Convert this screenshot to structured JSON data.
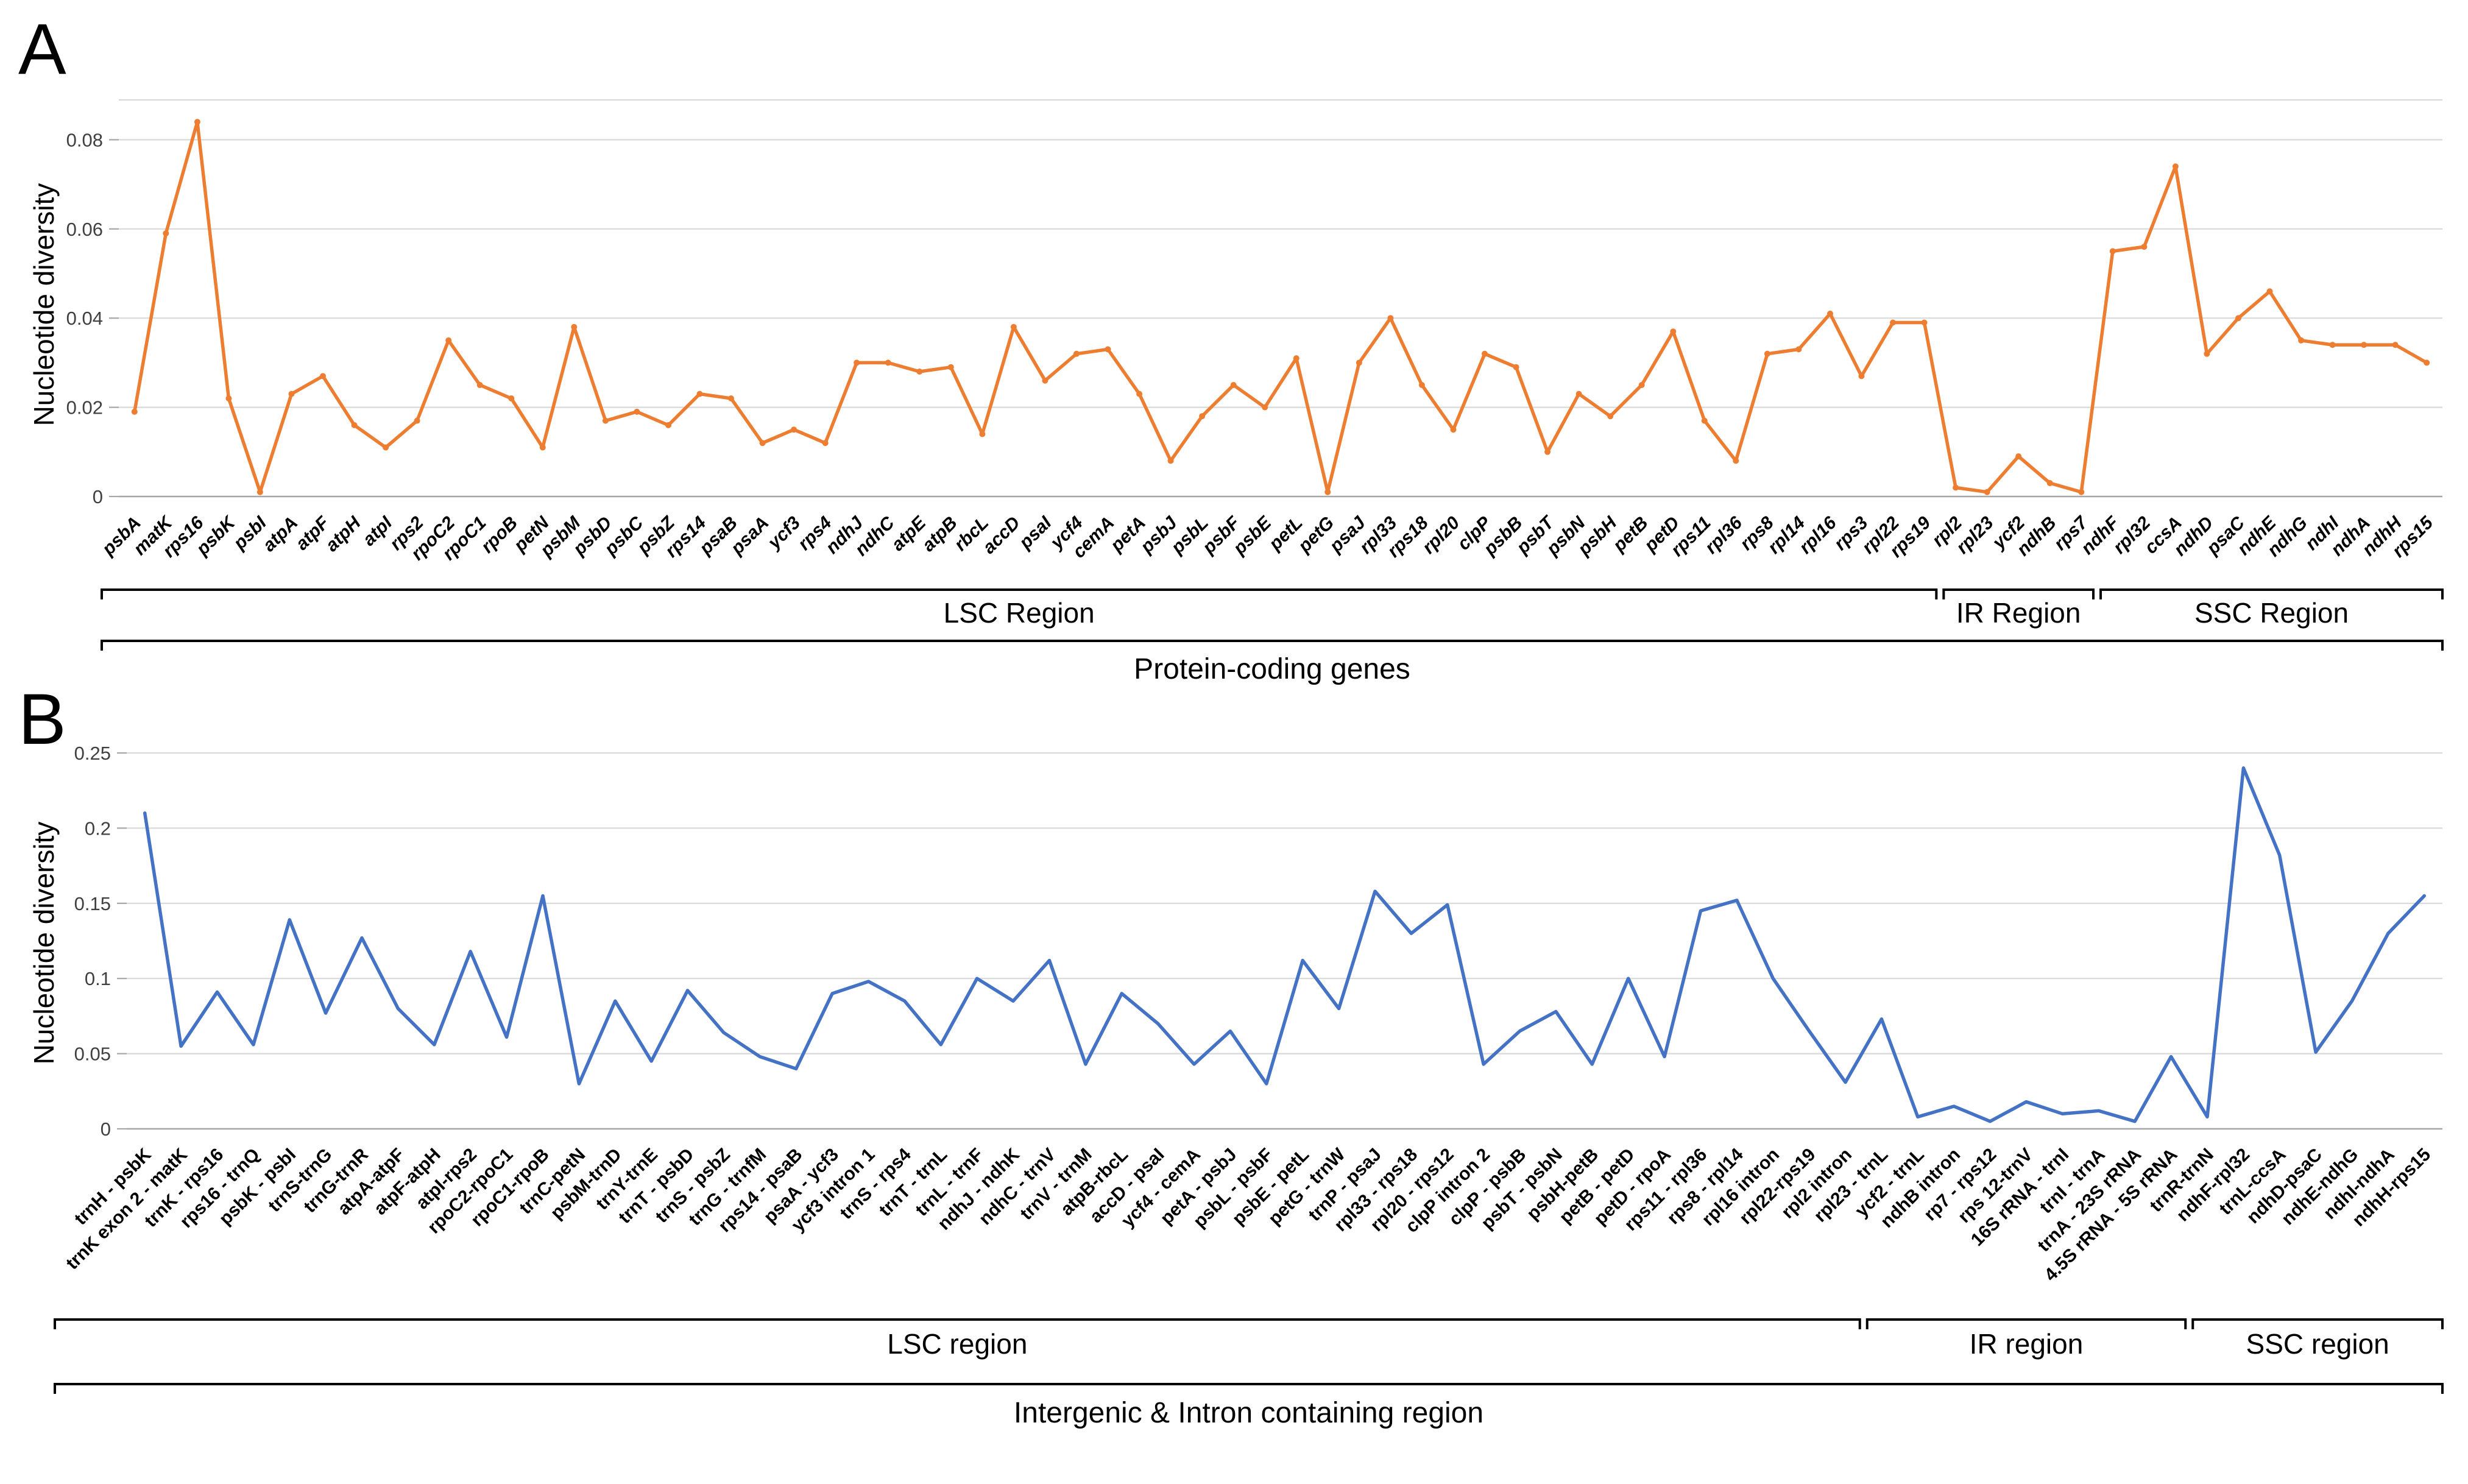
{
  "figure": {
    "background": "#FFFFFF"
  },
  "chart_data": [
    {
      "type": "line",
      "panel_label": "A",
      "ylabel": "Nucleotide diversity",
      "xlabel": "Protein-coding genes",
      "line_color": "#ED7D31",
      "ylim": [
        0,
        0.08
      ],
      "grid": true,
      "legend": "none",
      "yticks": [
        0,
        0.02,
        0.04,
        0.06,
        0.08
      ],
      "ytick_labels": [
        "0",
        "0.02",
        "0.04",
        "0.06",
        "0.08"
      ],
      "categories": [
        "psbA",
        "matK",
        "rps16",
        "psbK",
        "psbI",
        "atpA",
        "atpF",
        "atpH",
        "atpI",
        "rps2",
        "rpoC2",
        "rpoC1",
        "rpoB",
        "petN",
        "psbM",
        "psbD",
        "psbC",
        "psbZ",
        "rps14",
        "psaB",
        "psaA",
        "ycf3",
        "rps4",
        "ndhJ",
        "ndhC",
        "atpE",
        "atpB",
        "rbcL",
        "accD",
        "psaI",
        "ycf4",
        "cemA",
        "petA",
        "psbJ",
        "psbL",
        "psbF",
        "psbE",
        "petL",
        "petG",
        "psaJ",
        "rpl33",
        "rps18",
        "rpl20",
        "clpP",
        "psbB",
        "psbT",
        "psbN",
        "psbH",
        "petB",
        "petD",
        "rps11",
        "rpl36",
        "rps8",
        "rpl14",
        "rpl16",
        "rps3",
        "rpl22",
        "rps19",
        "rpl2",
        "rpl23",
        "ycf2",
        "ndhB",
        "rps7",
        "ndhF",
        "rpl32",
        "ccsA",
        "ndhD",
        "psaC",
        "ndhE",
        "ndhG",
        "ndhI",
        "ndhA",
        "ndhH",
        "rps15"
      ],
      "values": [
        0.019,
        0.059,
        0.084,
        0.022,
        0.001,
        0.023,
        0.027,
        0.016,
        0.011,
        0.017,
        0.035,
        0.025,
        0.022,
        0.011,
        0.038,
        0.017,
        0.019,
        0.016,
        0.023,
        0.022,
        0.012,
        0.015,
        0.012,
        0.03,
        0.03,
        0.028,
        0.029,
        0.014,
        0.038,
        0.026,
        0.032,
        0.033,
        0.023,
        0.008,
        0.018,
        0.025,
        0.02,
        0.031,
        0.001,
        0.03,
        0.04,
        0.025,
        0.015,
        0.032,
        0.029,
        0.01,
        0.023,
        0.018,
        0.025,
        0.037,
        0.017,
        0.008,
        0.032,
        0.033,
        0.041,
        0.027,
        0.039,
        0.039,
        0.002,
        0.001,
        0.009,
        0.003,
        0.001,
        0.055,
        0.056,
        0.074,
        0.032,
        0.04,
        0.046,
        0.035,
        0.034,
        0.034,
        0.034,
        0.03
      ],
      "regions": [
        {
          "label": "LSC Region",
          "start": 0,
          "end": 57
        },
        {
          "label": "IR Region",
          "start": 58,
          "end": 62
        },
        {
          "label": "SSC Region",
          "start": 63,
          "end": 73
        }
      ]
    },
    {
      "type": "line",
      "panel_label": "B",
      "ylabel": "Nucleotide diversity",
      "xlabel": "Intergenic & Intron containing region",
      "line_color": "#4472C4",
      "ylim": [
        0,
        0.25
      ],
      "grid": true,
      "legend": "none",
      "yticks": [
        0,
        0.05,
        0.1,
        0.15,
        0.2,
        0.25
      ],
      "ytick_labels": [
        "0",
        "0.05",
        "0.1",
        "0.15",
        "0.2",
        "0.25"
      ],
      "categories": [
        "trnH - psbK",
        "trnK exon 2 - matK",
        "trnK - rps16",
        "rps16 - trnQ",
        "psbK - psbI",
        "trnS-trnG",
        "trnG-trnR",
        "atpA-atpF",
        "atpF-atpH",
        "atpI-rps2",
        "rpoC2-rpoC1",
        "rpoC1-rpoB",
        "trnC-petN",
        "psbM-trnD",
        "trnY-trnE",
        "trnT - psbD",
        "trnS - psbZ",
        "trnG - trnfM",
        "rps14 - psaB",
        "psaA - ycf3",
        "ycf3 intron 1",
        "trnS - rps4",
        "trnT - trnL",
        "trnL - trnF",
        "ndhJ - ndhK",
        "ndhC - trnV",
        "trnV - trnM",
        "atpB-rbcL",
        "accD - psaI",
        "ycf4 - cemA",
        "petA - psbJ",
        "psbL - psbF",
        "psbE - petL",
        "petG - trnW",
        "trnP - psaJ",
        "rpl33 - rps18",
        "rpl20 - rps12",
        "clpP intron 2",
        "clpP - psbB",
        "psbT - psbN",
        "psbH-petB",
        "petB - petD",
        "petD - rpoA",
        "rps11 - rpl36",
        "rps8 - rpl14",
        "rpl16 intron",
        "rpl22-rps19",
        "rpl2 intron",
        "rpl23 - trnL",
        "ycf2 - trnL",
        "ndhB intron",
        "rp7 - rps12",
        "rps 12-trnV",
        "16S rRNA - trnI",
        "trnI - trnA",
        "trnA - 23S rRNA",
        "4.5S rRNA - 5S rRNA",
        "trnR-trnN",
        "ndhF-rpl32",
        "trnL-ccsA",
        "ndhD-psaC",
        "ndhE-ndhG",
        "ndhI-ndhA",
        "ndhH-rps15"
      ],
      "values": [
        0.21,
        0.055,
        0.091,
        0.056,
        0.139,
        0.077,
        0.127,
        0.08,
        0.056,
        0.118,
        0.061,
        0.155,
        0.03,
        0.085,
        0.045,
        0.092,
        0.064,
        0.048,
        0.04,
        0.09,
        0.098,
        0.085,
        0.056,
        0.1,
        0.085,
        0.112,
        0.043,
        0.09,
        0.07,
        0.043,
        0.065,
        0.03,
        0.112,
        0.08,
        0.158,
        0.13,
        0.149,
        0.043,
        0.065,
        0.078,
        0.043,
        0.1,
        0.048,
        0.145,
        0.152,
        0.1,
        0.065,
        0.031,
        0.073,
        0.008,
        0.015,
        0.005,
        0.018,
        0.01,
        0.012,
        0.005,
        0.048,
        0.008,
        0.24,
        0.182,
        0.051,
        0.085,
        0.13,
        0.155
      ],
      "regions": [
        {
          "label": "LSC region",
          "start": 0,
          "end": 47
        },
        {
          "label": "IR region",
          "start": 48,
          "end": 56
        },
        {
          "label": "SSC region",
          "start": 57,
          "end": 63
        }
      ]
    }
  ]
}
